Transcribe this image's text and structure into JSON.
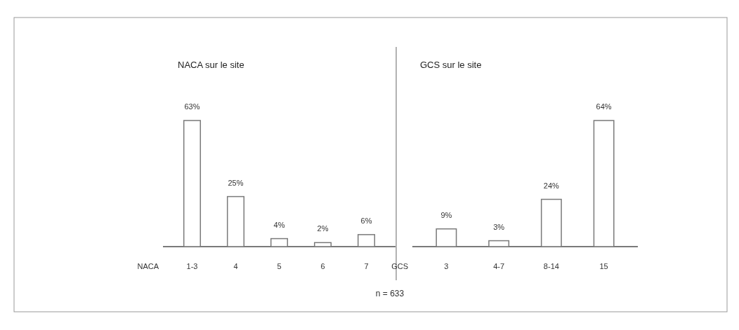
{
  "chart_data": [
    {
      "type": "bar",
      "title": "NACA sur le site",
      "xlabel": "NACA",
      "categories": [
        "1-3",
        "4",
        "5",
        "6",
        "7"
      ],
      "values": [
        63,
        25,
        4,
        2,
        6
      ],
      "value_labels": [
        "63%",
        "25%",
        "4%",
        "2%",
        "6%"
      ],
      "color": "#ffffff",
      "annotations": [
        "n = 633"
      ]
    },
    {
      "type": "bar",
      "title": "GCS sur le site",
      "xlabel": "GCS",
      "categories": [
        "3",
        "4-7",
        "8-14",
        "15"
      ],
      "values": [
        9,
        3,
        24,
        64
      ],
      "value_labels": [
        "9%",
        "3%",
        "24%",
        "64%"
      ],
      "color": "#ffffff"
    }
  ]
}
